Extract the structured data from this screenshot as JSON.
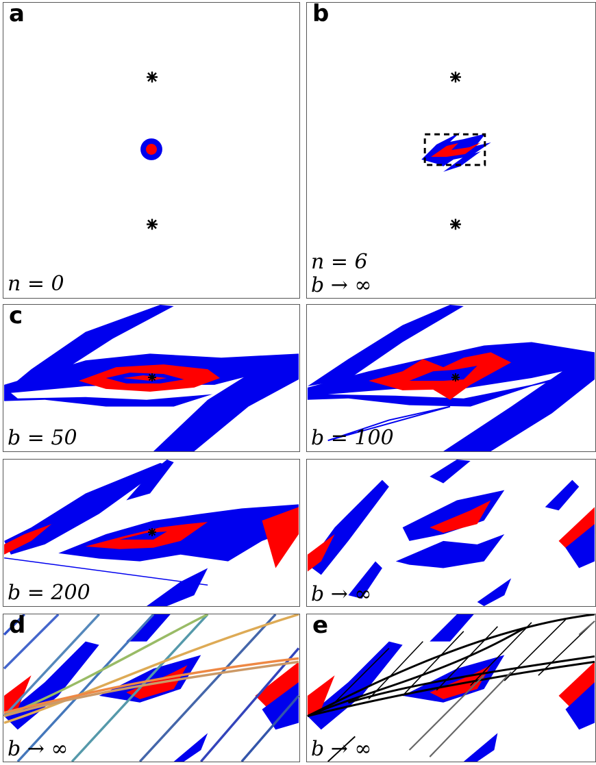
{
  "figure": {
    "panels": [
      {
        "letter": "a",
        "lines": [
          "n = 0"
        ]
      },
      {
        "letter": "b",
        "lines": [
          "n = 6",
          "b → ∞"
        ]
      },
      {
        "letter": "c",
        "lines": [
          "b = 50"
        ]
      },
      {
        "letter": "",
        "lines": [
          "b = 100"
        ]
      },
      {
        "letter": "",
        "lines": [
          "b = 200"
        ]
      },
      {
        "letter": "",
        "lines": [
          "b → ∞"
        ]
      },
      {
        "letter": "d",
        "lines": [
          "b → ∞"
        ]
      },
      {
        "letter": "e",
        "lines": [
          "b → ∞"
        ]
      }
    ]
  },
  "colors": {
    "blue": "#0000ee",
    "red": "#ff0000",
    "black": "#000000"
  }
}
